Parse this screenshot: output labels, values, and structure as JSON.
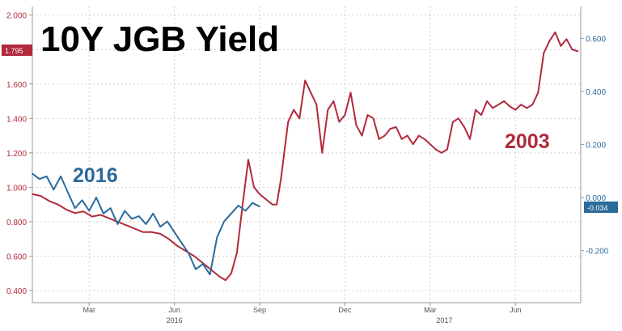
{
  "chart_data": {
    "type": "line",
    "title": "10Y JGB Yield",
    "colors": {
      "series_2003": "#b02a3b",
      "series_2016": "#2b6a9b",
      "grid": "#cfcfcf"
    },
    "grid": true,
    "y_left": {
      "ticks": [
        "2.000",
        "1.800",
        "1.600",
        "1.400",
        "1.200",
        "1.000",
        "0.800",
        "0.600",
        "0.400"
      ],
      "range": [
        0.33,
        2.05
      ],
      "last_value_tag": "1.795"
    },
    "y_right": {
      "ticks": [
        "0.600",
        "0.400",
        "0.200",
        "0.000",
        "-0.200"
      ],
      "range": [
        -0.396,
        0.72
      ],
      "last_value_tag": "-0.034"
    },
    "x_ticks": [
      {
        "label": "Mar",
        "value": 2.0
      },
      {
        "label": "Jun",
        "value": 5.0
      },
      {
        "label": "Sep",
        "value": 8.0
      },
      {
        "label": "Dec",
        "value": 11.0
      },
      {
        "label": "Mar",
        "value": 14.0
      },
      {
        "label": "Jun",
        "value": 17.0
      }
    ],
    "x_year_labels": [
      {
        "label": "2016",
        "value": 5.0
      },
      {
        "label": "2017",
        "value": 14.5
      }
    ],
    "x_range": [
      0.0,
      19.3
    ],
    "series": [
      {
        "name": "2003",
        "axis": "left",
        "x": [
          0.0,
          0.3,
          0.6,
          0.9,
          1.2,
          1.5,
          1.8,
          2.1,
          2.4,
          2.7,
          3.0,
          3.3,
          3.6,
          3.9,
          4.2,
          4.5,
          4.8,
          5.1,
          5.4,
          5.7,
          6.0,
          6.3,
          6.6,
          6.8,
          7.0,
          7.2,
          7.4,
          7.6,
          7.8,
          8.0,
          8.15,
          8.3,
          8.45,
          8.6,
          8.75,
          9.0,
          9.2,
          9.4,
          9.6,
          9.8,
          10.0,
          10.2,
          10.4,
          10.6,
          10.8,
          11.0,
          11.2,
          11.4,
          11.6,
          11.8,
          12.0,
          12.2,
          12.4,
          12.6,
          12.8,
          13.0,
          13.2,
          13.4,
          13.6,
          13.8,
          14.0,
          14.2,
          14.4,
          14.6,
          14.8,
          15.0,
          15.2,
          15.4,
          15.6,
          15.8,
          16.0,
          16.2,
          16.4,
          16.6,
          16.8,
          17.0,
          17.2,
          17.4,
          17.6,
          17.8,
          18.0,
          18.2,
          18.4,
          18.6,
          18.8,
          19.0,
          19.2
        ],
        "values": [
          0.96,
          0.95,
          0.92,
          0.9,
          0.87,
          0.85,
          0.86,
          0.83,
          0.84,
          0.82,
          0.8,
          0.78,
          0.76,
          0.74,
          0.74,
          0.73,
          0.7,
          0.66,
          0.63,
          0.6,
          0.56,
          0.52,
          0.48,
          0.46,
          0.5,
          0.62,
          0.9,
          1.16,
          1.0,
          0.96,
          0.94,
          0.92,
          0.9,
          0.9,
          1.05,
          1.38,
          1.45,
          1.4,
          1.62,
          1.55,
          1.48,
          1.2,
          1.45,
          1.5,
          1.38,
          1.42,
          1.55,
          1.36,
          1.3,
          1.42,
          1.4,
          1.28,
          1.3,
          1.34,
          1.35,
          1.28,
          1.3,
          1.25,
          1.3,
          1.28,
          1.25,
          1.22,
          1.2,
          1.22,
          1.38,
          1.4,
          1.35,
          1.28,
          1.45,
          1.42,
          1.5,
          1.46,
          1.48,
          1.5,
          1.47,
          1.45,
          1.48,
          1.46,
          1.48,
          1.55,
          1.78,
          1.85,
          1.9,
          1.82,
          1.86,
          1.8,
          1.79
        ]
      },
      {
        "name": "2016",
        "axis": "right",
        "x": [
          0.0,
          0.25,
          0.5,
          0.75,
          1.0,
          1.25,
          1.5,
          1.75,
          2.0,
          2.25,
          2.5,
          2.75,
          3.0,
          3.25,
          3.5,
          3.75,
          4.0,
          4.25,
          4.5,
          4.75,
          5.0,
          5.25,
          5.5,
          5.75,
          6.0,
          6.25,
          6.5,
          6.75,
          7.0,
          7.25,
          7.5,
          7.75,
          8.0
        ],
        "values": [
          0.09,
          0.07,
          0.08,
          0.03,
          0.08,
          0.02,
          -0.04,
          -0.01,
          -0.05,
          0.0,
          -0.06,
          -0.04,
          -0.1,
          -0.05,
          -0.08,
          -0.07,
          -0.1,
          -0.06,
          -0.11,
          -0.09,
          -0.13,
          -0.17,
          -0.21,
          -0.27,
          -0.25,
          -0.29,
          -0.15,
          -0.09,
          -0.06,
          -0.03,
          -0.05,
          -0.02,
          -0.034
        ]
      }
    ]
  }
}
